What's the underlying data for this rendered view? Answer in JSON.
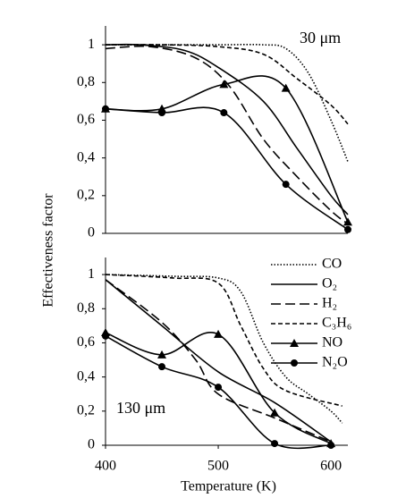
{
  "chart_data": [
    {
      "type": "line",
      "ylabel": "Effectiveness factor",
      "annotation": "30 μm",
      "xlim": [
        400,
        615
      ],
      "ylim": [
        0,
        1.1
      ],
      "yticks": [
        0,
        {
          "value": 0.2,
          "label": "0,2"
        },
        {
          "value": 0.4,
          "label": "0,4"
        },
        {
          "value": 0.6,
          "label": "0,6"
        },
        {
          "value": 0.8,
          "label": "0,8"
        },
        1
      ],
      "series": [
        {
          "color": "#000000",
          "dash": "dotted",
          "marker": "none",
          "x": [
            400,
            450,
            500,
            540,
            560,
            580,
            600,
            615
          ],
          "values": [
            1,
            1,
            1,
            1,
            0.98,
            0.85,
            0.6,
            0.38
          ]
        },
        {
          "color": "#000000",
          "dash": "solid",
          "marker": "none",
          "x": [
            400,
            430,
            470,
            500,
            540,
            570,
            600,
            615
          ],
          "values": [
            1,
            1,
            0.97,
            0.88,
            0.7,
            0.45,
            0.2,
            0.1
          ]
        },
        {
          "color": "#000000",
          "dash": "long-dash",
          "marker": "none",
          "x": [
            400,
            440,
            480,
            510,
            540,
            570,
            600,
            615
          ],
          "values": [
            0.98,
            0.99,
            0.93,
            0.78,
            0.5,
            0.3,
            0.12,
            0.05
          ]
        },
        {
          "color": "#000000",
          "dash": "dashed",
          "marker": "none",
          "x": [
            400,
            450,
            500,
            540,
            570,
            600,
            615
          ],
          "values": [
            1,
            1,
            0.99,
            0.95,
            0.82,
            0.68,
            0.58
          ]
        },
        {
          "color": "#000000",
          "dash": "solid",
          "marker": "triangle",
          "x": [
            400,
            450,
            505,
            560,
            615
          ],
          "values": [
            0.66,
            0.66,
            0.79,
            0.77,
            0.06
          ]
        },
        {
          "color": "#000000",
          "dash": "solid",
          "marker": "circle",
          "x": [
            400,
            450,
            505,
            560,
            615
          ],
          "values": [
            0.66,
            0.64,
            0.64,
            0.26,
            0.02
          ]
        }
      ]
    },
    {
      "type": "line",
      "xlabel": "Temperature (K)",
      "annotation": "130 μm",
      "xlim": [
        400,
        615
      ],
      "ylim": [
        0,
        1.1
      ],
      "xticks": [
        400,
        500,
        600
      ],
      "yticks": [
        0,
        {
          "value": 0.2,
          "label": "0,2"
        },
        {
          "value": 0.4,
          "label": "0,4"
        },
        {
          "value": 0.6,
          "label": "0,6"
        },
        {
          "value": 0.8,
          "label": "0,8"
        },
        1
      ],
      "legend": "upper right",
      "series": [
        {
          "name": "CO",
          "color": "#000000",
          "dash": "dotted",
          "marker": "none",
          "x": [
            400,
            460,
            500,
            520,
            540,
            560,
            580,
            600,
            610
          ],
          "values": [
            1,
            0.99,
            0.98,
            0.9,
            0.6,
            0.4,
            0.3,
            0.2,
            0.13
          ]
        },
        {
          "name": "O₂",
          "color": "#000000",
          "dash": "solid",
          "marker": "none",
          "x": [
            400,
            450,
            500,
            550,
            600
          ],
          "values": [
            0.97,
            0.7,
            0.43,
            0.25,
            0.02
          ]
        },
        {
          "name": "H₂",
          "color": "#000000",
          "dash": "long-dash",
          "marker": "none",
          "x": [
            400,
            450,
            480,
            500,
            550,
            600
          ],
          "values": [
            0.97,
            0.72,
            0.5,
            0.3,
            0.16,
            0.02
          ]
        },
        {
          "name": "C₃H₆",
          "color": "#000000",
          "dash": "dashed",
          "marker": "none",
          "x": [
            400,
            460,
            500,
            520,
            540,
            560,
            610
          ],
          "values": [
            1,
            0.98,
            0.95,
            0.7,
            0.45,
            0.32,
            0.23
          ]
        },
        {
          "name": "NO",
          "color": "#000000",
          "dash": "solid",
          "marker": "triangle",
          "x": [
            400,
            450,
            500,
            550,
            600
          ],
          "values": [
            0.66,
            0.53,
            0.65,
            0.19,
            0.01
          ]
        },
        {
          "name": "N₂O",
          "color": "#000000",
          "dash": "solid",
          "marker": "circle",
          "x": [
            400,
            450,
            500,
            550,
            600
          ],
          "values": [
            0.64,
            0.46,
            0.34,
            0.01,
            0
          ]
        }
      ]
    }
  ]
}
